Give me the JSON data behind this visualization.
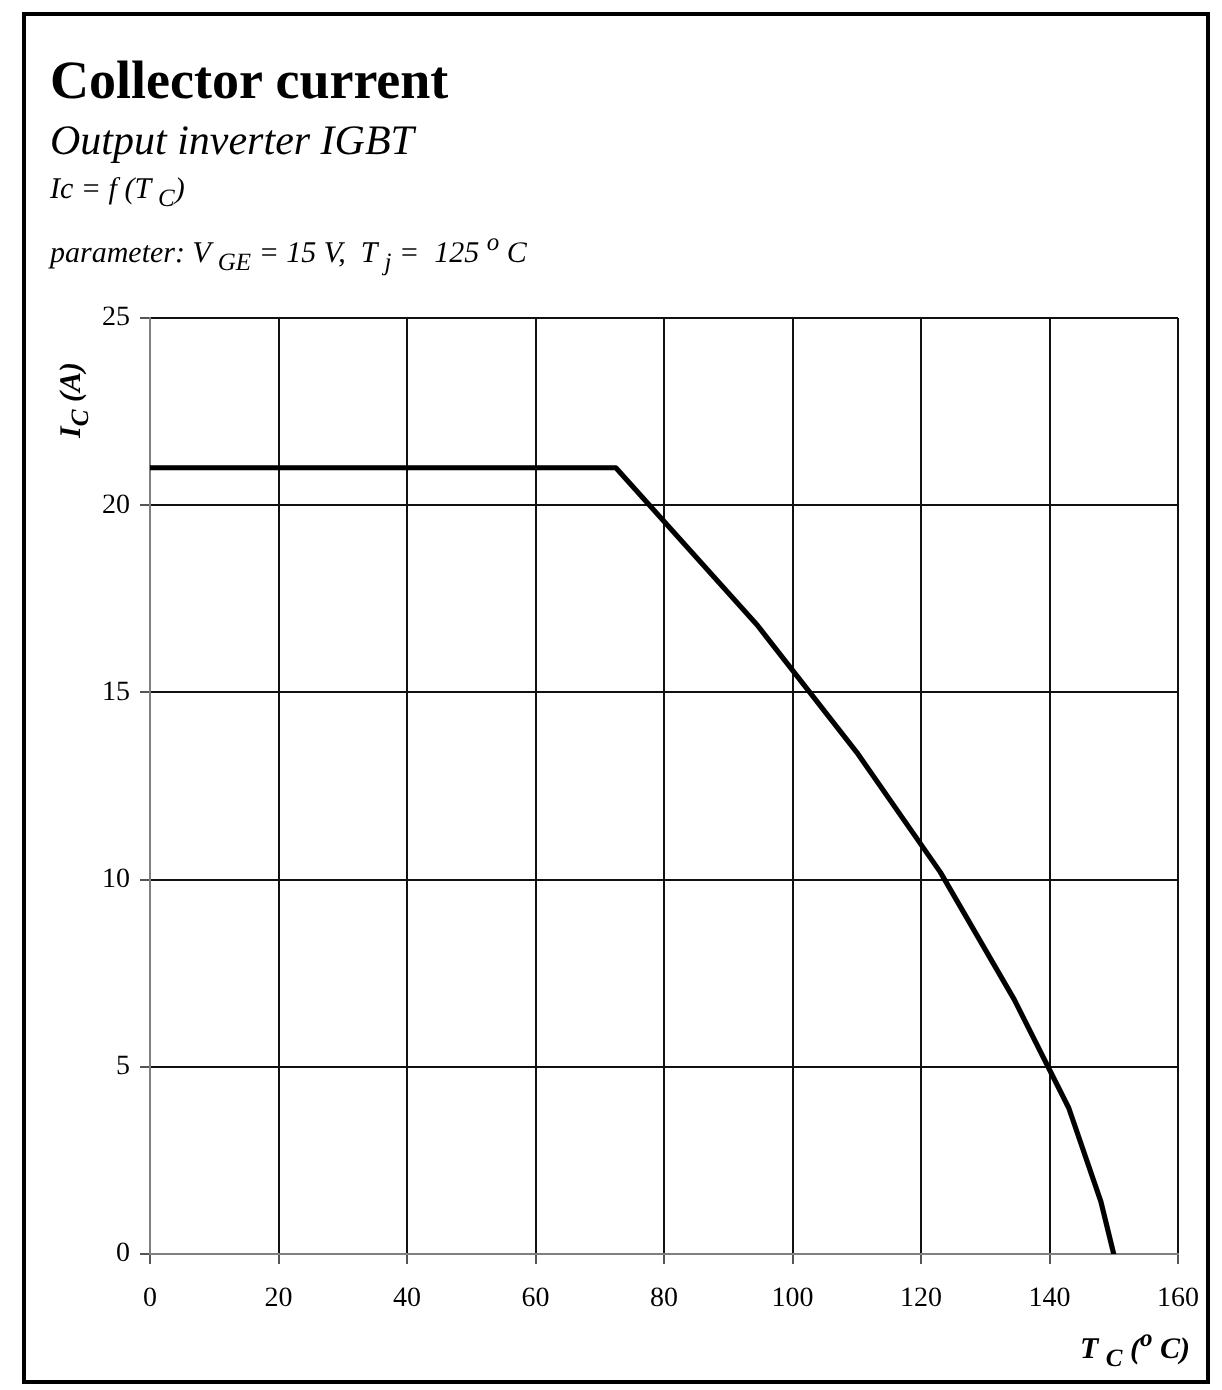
{
  "chart_data": {
    "type": "line",
    "title": "Collector current",
    "subtitle": "Output inverter IGBT",
    "annotations": [
      "Ic = f (T $_{C}$)",
      "parameter: V $_{GE}$ = 15 V,  T $_{j}$ =  125 $^{o}$ C"
    ],
    "xlabel": "T $_{C}$ ($^{o}$ C)",
    "ylabel": "I$_{C}$ (A)",
    "x": [
      0,
      72.5,
      94.5,
      110,
      123,
      134.5,
      143,
      148,
      150
    ],
    "values": [
      21,
      21,
      16.8,
      13.4,
      10.2,
      6.8,
      3.9,
      1.4,
      0
    ],
    "color": "#000000",
    "xlim": [
      0,
      160
    ],
    "xticks": [
      0,
      20,
      40,
      60,
      80,
      100,
      120,
      140,
      160
    ],
    "ylim": [
      0,
      25
    ],
    "yticks": [
      0,
      5,
      10,
      15,
      20,
      25
    ],
    "grid": true,
    "legend": false,
    "marker": "none",
    "line_style": "solid"
  }
}
